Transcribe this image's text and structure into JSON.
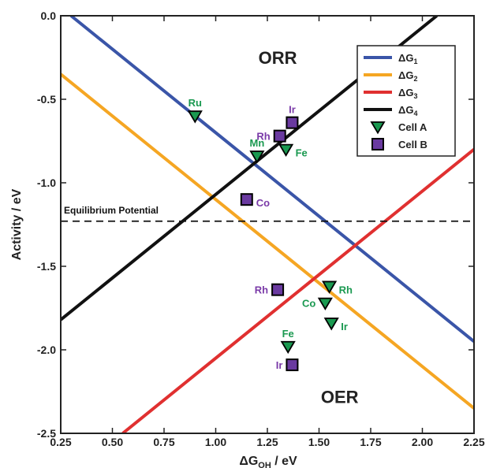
{
  "chart_data": {
    "type": "line",
    "xlabel": "ΔG",
    "xlabel_sub": "OH",
    "xlabel_suffix": " / eV",
    "ylabel": "Activity / eV",
    "xlim": [
      0.25,
      2.25
    ],
    "ylim": [
      -2.5,
      0.0
    ],
    "x_ticks": [
      0.25,
      0.5,
      0.75,
      1.0,
      1.25,
      1.5,
      1.75,
      2.0,
      2.25
    ],
    "x_tick_labels": [
      "0.25",
      "0.50",
      "0.75",
      "1.00",
      "1.25",
      "1.50",
      "1.75",
      "2.00",
      "2.25"
    ],
    "y_ticks": [
      0.0,
      -0.5,
      -1.0,
      -1.5,
      -2.0,
      -2.5
    ],
    "y_tick_labels": [
      "0.0",
      "-0.5",
      "-1.0",
      "-1.5",
      "-2.0",
      "-2.5"
    ],
    "grid": false,
    "legend_position": "top-right",
    "series": [
      {
        "name": "ΔG",
        "sub": "1",
        "color": "#3a55a8",
        "points": [
          [
            0.3,
            0.0
          ],
          [
            2.25,
            -1.95
          ]
        ]
      },
      {
        "name": "ΔG",
        "sub": "2",
        "color": "#f5a623",
        "points": [
          [
            0.25,
            -0.35
          ],
          [
            2.25,
            -2.35
          ]
        ]
      },
      {
        "name": "ΔG",
        "sub": "3",
        "color": "#e03030",
        "points": [
          [
            0.55,
            -2.5
          ],
          [
            2.25,
            -0.8
          ]
        ]
      },
      {
        "name": "ΔG",
        "sub": "4",
        "color": "#111111",
        "points": [
          [
            0.25,
            -1.82
          ],
          [
            2.07,
            0.0
          ]
        ]
      }
    ],
    "reference_line": {
      "label": "Equilibrium Potential",
      "y": -1.23,
      "style": "dashed"
    },
    "region_labels": [
      {
        "text": "ORR",
        "x": 1.3,
        "y": -0.25
      },
      {
        "text": "OER",
        "x": 1.6,
        "y": -2.28
      }
    ],
    "markers": [
      {
        "name": "Cell A",
        "shape": "triangle",
        "color": "#1a9950",
        "label_color": "#1a9950"
      },
      {
        "name": "Cell B",
        "shape": "square",
        "color": "#6a3aa0",
        "label_color": "#7a3aa8"
      }
    ],
    "points": [
      {
        "label": "Ru",
        "marker": "Cell A",
        "x": 0.9,
        "y": -0.6,
        "label_pos": "above"
      },
      {
        "label": "Mn",
        "marker": "Cell A",
        "x": 1.2,
        "y": -0.84,
        "label_pos": "above"
      },
      {
        "label": "Fe",
        "marker": "Cell A",
        "x": 1.34,
        "y": -0.8,
        "label_pos": "right"
      },
      {
        "label": "Rh",
        "marker": "Cell A",
        "x": 1.55,
        "y": -1.62,
        "label_pos": "right"
      },
      {
        "label": "Co",
        "marker": "Cell A",
        "x": 1.53,
        "y": -1.72,
        "label_pos": "left"
      },
      {
        "label": "Ir",
        "marker": "Cell A",
        "x": 1.56,
        "y": -1.84,
        "label_pos": "right"
      },
      {
        "label": "Fe",
        "marker": "Cell A",
        "x": 1.35,
        "y": -1.98,
        "label_pos": "above"
      },
      {
        "label": "Ir",
        "marker": "Cell B",
        "x": 1.37,
        "y": -0.64,
        "label_pos": "above"
      },
      {
        "label": "Rh",
        "marker": "Cell B",
        "x": 1.31,
        "y": -0.72,
        "label_pos": "left"
      },
      {
        "label": "Co",
        "marker": "Cell B",
        "x": 1.15,
        "y": -1.1,
        "label_pos": "right"
      },
      {
        "label": "Rh",
        "marker": "Cell B",
        "x": 1.3,
        "y": -1.64,
        "label_pos": "left"
      },
      {
        "label": "Ir",
        "marker": "Cell B",
        "x": 1.37,
        "y": -2.09,
        "label_pos": "left"
      }
    ]
  }
}
